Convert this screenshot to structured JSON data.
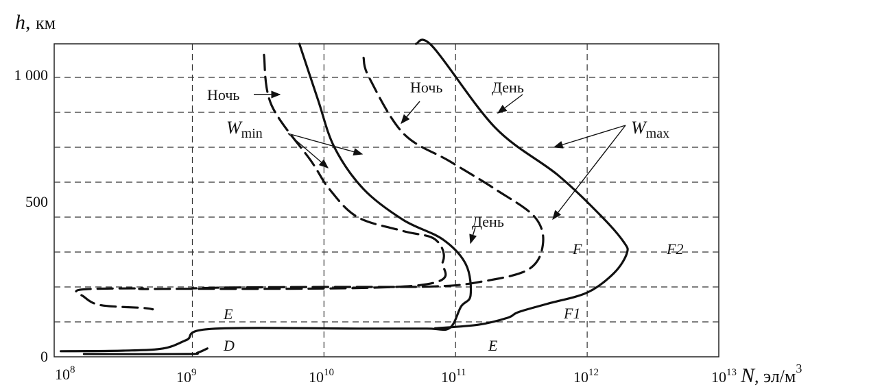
{
  "chart_data": {
    "type": "line",
    "title": "",
    "y_axis": {
      "symbol": "h",
      "unit": "км",
      "ticks": [
        "0",
        "500",
        "1 000"
      ],
      "tick_values": [
        0,
        500,
        1000
      ],
      "range": [
        0,
        1120
      ]
    },
    "x_axis": {
      "symbol": "N",
      "unit": "эл/м",
      "unit_exponent": "3",
      "scale": "log",
      "range_exp": [
        7.95,
        13
      ],
      "ticks": [
        {
          "base": "10",
          "exp": "8",
          "value": 100000000.0
        },
        {
          "base": "10",
          "exp": "9",
          "value": 1000000000.0
        },
        {
          "base": "10",
          "exp": "10",
          "value": 10000000000.0
        },
        {
          "base": "10",
          "exp": "11",
          "value": 100000000000.0
        },
        {
          "base": "10",
          "exp": "12",
          "value": 1000000000000.0
        },
        {
          "base": "10",
          "exp": "13",
          "value": 10000000000000.0
        }
      ]
    },
    "grid": {
      "style": "dashed",
      "h_lines_km": [
        125,
        250,
        375,
        500,
        625,
        750,
        875,
        1000
      ],
      "v_lines": [
        1000000000.0,
        10000000000.0,
        100000000000.0,
        1000000000000.0
      ]
    },
    "series": [
      {
        "name": "",
        "condition": "W_min",
        "time": "Ночь",
        "style": "dashed",
        "points": [
          [
            3500000000.0,
            1080
          ],
          [
            4000000000.0,
            900
          ],
          [
            8000000000.0,
            700
          ],
          [
            11000000000.0,
            600
          ],
          [
            18000000000.0,
            500
          ],
          [
            40000000000.0,
            450
          ],
          [
            70000000000.0,
            420
          ],
          [
            80000000000.0,
            340
          ],
          [
            50000000000.0,
            255
          ],
          [
            600000000.0,
            243
          ],
          [
            400000000.0,
            245
          ],
          [
            140000000.0,
            240
          ],
          [
            150000000.0,
            215
          ],
          [
            200000000.0,
            185
          ],
          [
            420000000.0,
            175
          ],
          [
            500000000.0,
            170
          ]
        ]
      },
      {
        "name": "",
        "condition": "W_min",
        "time": "День",
        "style": "solid",
        "points": [
          [
            100000000.0,
            20
          ],
          [
            300000000.0,
            22
          ],
          [
            600000000.0,
            30
          ],
          [
            900000000.0,
            60
          ],
          [
            1400000000.0,
            100
          ],
          [
            20000000000.0,
            101
          ],
          [
            60000000000.0,
            101
          ],
          [
            90000000000.0,
            103
          ],
          [
            110000000000.0,
            180
          ],
          [
            130000000000.0,
            220
          ],
          [
            120000000000.0,
            330
          ],
          [
            80000000000.0,
            420
          ],
          [
            40000000000.0,
            490
          ],
          [
            20000000000.0,
            600
          ],
          [
            12000000000.0,
            750
          ],
          [
            9000000000.0,
            920
          ],
          [
            6500000000.0,
            1120
          ]
        ]
      },
      {
        "name": "",
        "condition": "W_max",
        "time": "Ночь",
        "style": "dashed",
        "points": [
          [
            20000000000.0,
            1070
          ],
          [
            22000000000.0,
            1000
          ],
          [
            40000000000.0,
            800
          ],
          [
            90000000000.0,
            700
          ],
          [
            200000000000.0,
            600
          ],
          [
            400000000000.0,
            500
          ],
          [
            460000000000.0,
            400
          ],
          [
            350000000000.0,
            310
          ],
          [
            140000000000.0,
            265
          ],
          [
            70000000000.0,
            252
          ],
          [
            25000000000.0,
            250
          ],
          [
            10000000000.0,
            250
          ],
          [
            2000000000.0,
            248
          ],
          [
            1000000000.0,
            245
          ]
        ]
      },
      {
        "name": "",
        "condition": "W_max",
        "time": "День",
        "style": "solid",
        "points": [
          [
            70000000000.0,
            102
          ],
          [
            150000000000.0,
            115
          ],
          [
            250000000000.0,
            140
          ],
          [
            300000000000.0,
            160
          ],
          [
            500000000000.0,
            190
          ],
          [
            1000000000000.0,
            230
          ],
          [
            1600000000000.0,
            300
          ],
          [
            2000000000000.0,
            370
          ],
          [
            1900000000000.0,
            410
          ],
          [
            1300000000000.0,
            500
          ],
          [
            600000000000.0,
            650
          ],
          [
            200000000000.0,
            820
          ],
          [
            67000000000.0,
            1110
          ],
          [
            50000000000.0,
            1120
          ],
          [
            150000000.0,
            10
          ],
          [
            900000000.0,
            10
          ],
          [
            1100000000.0,
            15
          ],
          [
            1300000000.0,
            30
          ]
        ]
      }
    ],
    "annotations": [
      {
        "text": "Ночь",
        "kind": "time-label"
      },
      {
        "text": "Ночь",
        "kind": "time-label"
      },
      {
        "text": "День",
        "kind": "time-label"
      },
      {
        "text": "День",
        "kind": "time-label"
      },
      {
        "text": "W",
        "sub": "min",
        "kind": "condition"
      },
      {
        "text": "W",
        "sub": "max",
        "kind": "condition"
      }
    ],
    "layer_labels": [
      "D",
      "E",
      "E",
      "F",
      "F1",
      "F2"
    ]
  }
}
